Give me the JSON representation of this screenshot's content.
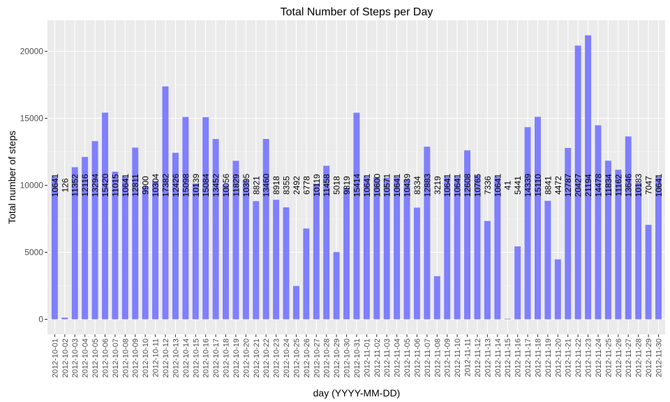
{
  "chart_data": {
    "type": "bar",
    "title": "Total Number of Steps per Day",
    "xlabel": "day (YYYY-MM-DD)",
    "ylabel": "Total number of steps",
    "ylim": [
      0,
      22100
    ],
    "yticks": [
      0,
      5000,
      10000,
      15000,
      20000
    ],
    "yticklabels": [
      "0",
      "5000",
      "10000",
      "15000",
      "20000"
    ],
    "grid": true,
    "bar_color": "#7f7fff",
    "panel_background": "#ebebeb",
    "categories": [
      "2012-10-01",
      "2012-10-02",
      "2012-10-03",
      "2012-10-04",
      "2012-10-05",
      "2012-10-06",
      "2012-10-07",
      "2012-10-08",
      "2012-10-09",
      "2012-10-10",
      "2012-10-11",
      "2012-10-12",
      "2012-10-13",
      "2012-10-14",
      "2012-10-15",
      "2012-10-16",
      "2012-10-17",
      "2012-10-18",
      "2012-10-19",
      "2012-10-20",
      "2012-10-21",
      "2012-10-22",
      "2012-10-23",
      "2012-10-24",
      "2012-10-25",
      "2012-10-26",
      "2012-10-27",
      "2012-10-28",
      "2012-10-29",
      "2012-10-30",
      "2012-10-31",
      "2012-11-01",
      "2012-11-02",
      "2012-11-03",
      "2012-11-04",
      "2012-11-05",
      "2012-11-06",
      "2012-11-07",
      "2012-11-08",
      "2012-11-09",
      "2012-11-10",
      "2012-11-11",
      "2012-11-12",
      "2012-11-13",
      "2012-11-14",
      "2012-11-15",
      "2012-11-16",
      "2012-11-17",
      "2012-11-18",
      "2012-11-19",
      "2012-11-20",
      "2012-11-21",
      "2012-11-22",
      "2012-11-23",
      "2012-11-24",
      "2012-11-25",
      "2012-11-26",
      "2012-11-27",
      "2012-11-28",
      "2012-11-29",
      "2012-11-30"
    ],
    "values": [
      10641,
      126,
      11352,
      12116,
      13294,
      15420,
      11015,
      10641,
      12811,
      9900,
      10304,
      17382,
      12426,
      15098,
      10139,
      15084,
      13452,
      10056,
      11829,
      10395,
      8821,
      13460,
      8918,
      8355,
      2492,
      6778,
      10119,
      11458,
      5018,
      9819,
      15414,
      10641,
      10600,
      10571,
      10641,
      10439,
      8334,
      12883,
      3219,
      10641,
      10641,
      12608,
      10765,
      7336,
      10641,
      41,
      5441,
      14339,
      15110,
      8841,
      4472,
      12787,
      20427,
      21194,
      14478,
      11834,
      11162,
      13646,
      10183,
      7047,
      10641
    ],
    "value_labels": [
      "10641",
      "126",
      "11352",
      "12116",
      "13294",
      "15420",
      "11015",
      "10641",
      "12811",
      "9900",
      "10304",
      "17382",
      "12426",
      "15098",
      "10139",
      "15084",
      "13452",
      "10056",
      "11829",
      "10395",
      "8821",
      "13460",
      "8918",
      "8355",
      "2492",
      "6778",
      "10119",
      "11458",
      "5018",
      "9819",
      "15414",
      "10641",
      "10600",
      "10571",
      "10641",
      "10439",
      "8334",
      "12883",
      "3219",
      "10641",
      "10641",
      "12608",
      "10765",
      "7336",
      "10641",
      "41",
      "5441",
      "14339",
      "15110",
      "8841",
      "4472",
      "12787",
      "20427",
      "21194",
      "14478",
      "11834",
      "11162",
      "13646",
      "10183",
      "7047",
      "10641"
    ],
    "data_label_y": 10000
  }
}
